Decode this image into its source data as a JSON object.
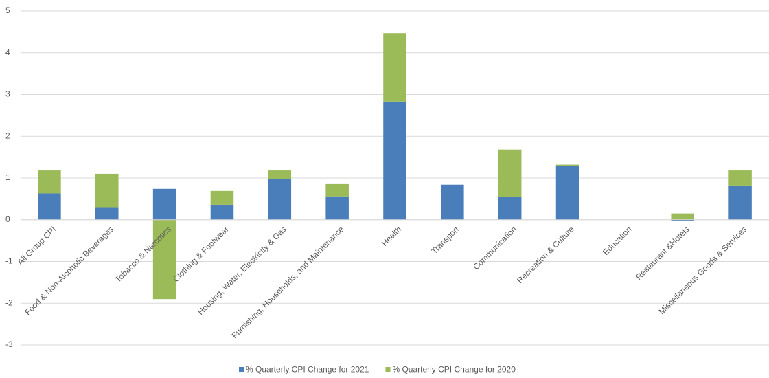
{
  "chart_data": {
    "type": "stacked_bar",
    "categories": [
      "All Group CPI",
      "Food & Non-Alcoholic Beverages",
      "Tobacco & Narcotics",
      "Clothing & Footwear",
      "Housing, Water, Electricity & Gas",
      "Furnishing, Households, and Maintenance",
      "Health",
      "Transport",
      "Communication",
      "Recreation & Culture",
      "Education",
      "Restaurant &Hotels",
      "Miscellaneous Goods & Services"
    ],
    "series": [
      {
        "name": "% Quarterly CPI Change for 2021",
        "color": "#4a7ebb",
        "values": [
          0.63,
          0.3,
          0.74,
          0.36,
          0.97,
          0.56,
          2.83,
          0.84,
          0.54,
          1.28,
          0,
          -0.03,
          0.82
        ]
      },
      {
        "name": "% Quarterly CPI Change for 2020",
        "color": "#9bbb59",
        "values": [
          0.55,
          0.8,
          -1.9,
          0.33,
          0.21,
          0.31,
          1.64,
          0,
          1.14,
          0.04,
          0,
          0.15,
          0.36
        ]
      }
    ],
    "ylim": [
      -3,
      5
    ],
    "yticks": [
      -3,
      -2,
      -1,
      0,
      1,
      2,
      3,
      4,
      5
    ],
    "grid": true,
    "legend": "bottom"
  }
}
